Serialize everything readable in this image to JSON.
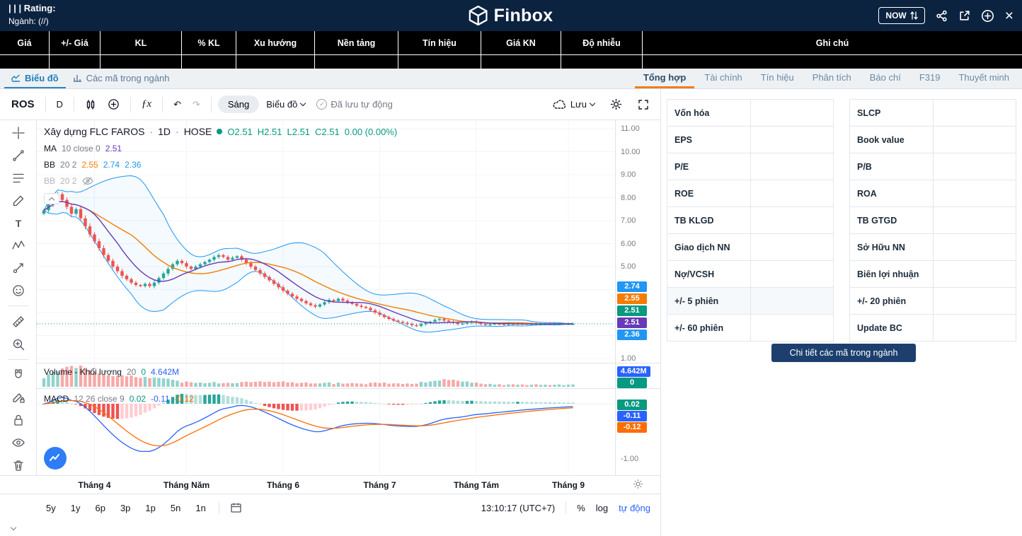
{
  "header": {
    "rating": "| | | Rating:",
    "industry_label": "Ngành:",
    "industry_value": "(//)",
    "brand": "Finbox",
    "now": "NOW"
  },
  "summary": {
    "columns": [
      "Giá",
      "+/- Giá",
      "KL",
      "% KL",
      "Xu hướng",
      "Nền tảng",
      "Tín hiệu",
      "Giá KN",
      "Độ nhiễu",
      "Ghi chú"
    ]
  },
  "tabs": {
    "chart": "Biểu đồ",
    "industry": "Các mã trong ngành",
    "right": [
      {
        "label": "Tổng hợp",
        "active": true
      },
      {
        "label": "Tài chính"
      },
      {
        "label": "Tín hiệu"
      },
      {
        "label": "Phân tích"
      },
      {
        "label": "Báo chí"
      },
      {
        "label": "F319"
      },
      {
        "label": "Thuyết minh"
      }
    ]
  },
  "toolbar": {
    "symbol": "ROS",
    "interval": "D",
    "fx": "ƒx",
    "undo": "↶",
    "redo": "↷",
    "theme": "Sáng",
    "layout": "Biểu đồ",
    "autosave": "Đã lưu tự động",
    "save": "Lưu"
  },
  "legend": {
    "title": "Xây dựng FLC FAROS",
    "sep": "·",
    "res": "1D",
    "exch": "HOSE",
    "o": "O2.51",
    "h": "H2.51",
    "l": "L2.51",
    "c": "C2.51",
    "chg": "0.00 (0.00%)",
    "ma": {
      "name": "MA",
      "params": "10 close 0",
      "value": "2.51"
    },
    "bb": {
      "name": "BB",
      "params": "20 2",
      "v1": "2.55",
      "v2": "2.74",
      "v3": "2.36"
    },
    "bb2": {
      "name": "BB",
      "params": "20 2"
    },
    "vol": {
      "name": "Volume - Khối lượng",
      "params": "20",
      "v1": "0",
      "v2": "4.642M"
    },
    "macd": {
      "name": "MACD",
      "params": "12 26 close 9",
      "v1": "0.02",
      "v2": "-0.11",
      "v3": "-0.12"
    }
  },
  "axis": {
    "prices": [
      "11.00",
      "10.00",
      "9.00",
      "8.00",
      "7.00",
      "6.00",
      "5.00"
    ],
    "price_low": "1.00",
    "macd_low": "-1.00",
    "chips": {
      "bb_upper": "2.74",
      "bb_basis": "2.55",
      "close": "2.51",
      "ma": "2.51",
      "bb_lower": "2.36",
      "volume": "4.642M",
      "vol_zero": "0",
      "macd_hist": "0.02",
      "macd_line": "-0.11",
      "macd_signal": "-0.12"
    }
  },
  "footer": {
    "ranges": [
      "5y",
      "1y",
      "6p",
      "3p",
      "1p",
      "5n",
      "1n"
    ],
    "clock": "13:10:17 (UTC+7)",
    "percent": "%",
    "log": "log",
    "auto": "tự động"
  },
  "info": {
    "left": [
      {
        "label": "Vốn hóa",
        "value": ""
      },
      {
        "label": "EPS",
        "value": ""
      },
      {
        "label": "P/E",
        "value": ""
      },
      {
        "label": "ROE",
        "value": ""
      },
      {
        "label": "TB KLGD",
        "value": ""
      },
      {
        "label": "Giao dịch NN",
        "value": ""
      },
      {
        "label": "Nợ/VCSH",
        "value": ""
      },
      {
        "label": "+/- 5 phiên",
        "value": ""
      },
      {
        "label": "+/- 60 phiên",
        "value": ""
      }
    ],
    "right": [
      {
        "label": "SLCP",
        "value": ""
      },
      {
        "label": "Book value",
        "value": ""
      },
      {
        "label": "P/B",
        "value": ""
      },
      {
        "label": "ROA",
        "value": ""
      },
      {
        "label": "TB GTGD",
        "value": ""
      },
      {
        "label": "Sở Hữu NN",
        "value": ""
      },
      {
        "label": "Biên lợi nhuận",
        "value": ""
      },
      {
        "label": "+/- 20 phiên",
        "value": ""
      },
      {
        "label": "Update BC",
        "value": ""
      }
    ],
    "detail_button": "Chi tiết các mã trong ngành"
  },
  "colors": {
    "navy": "#0c2340",
    "blue": "#2962ff",
    "lightblue": "#2196f3",
    "orange": "#f57c00",
    "deep_orange": "#ff6d00",
    "green": "#089981",
    "teal": "#26a69a",
    "red": "#ef5350",
    "purple": "#673ab7",
    "accent": "#ef7d22",
    "button": "#1c3f6e"
  },
  "chart_data": {
    "type": "candlestick",
    "symbol": "ROS",
    "exchange": "HOSE",
    "timeframe": "1D",
    "title": "Xây dựng FLC FAROS · 1D · HOSE",
    "price_axis": {
      "min": 1,
      "max": 11,
      "step": 1
    },
    "months": [
      "Tháng 4",
      "Tháng Năm",
      "Tháng 6",
      "Tháng 7",
      "Tháng Tám",
      "Tháng 9"
    ],
    "month_indices": [
      11,
      31,
      52,
      73,
      94,
      114
    ],
    "closes": [
      7.45,
      7.7,
      7.95,
      8.15,
      7.9,
      7.6,
      7.3,
      7.5,
      7.1,
      6.75,
      6.4,
      6.1,
      5.8,
      5.5,
      5.25,
      5.0,
      4.8,
      4.6,
      4.45,
      4.3,
      4.2,
      4.15,
      4.25,
      4.15,
      4.3,
      4.5,
      4.7,
      4.9,
      5.1,
      5.25,
      5.15,
      5.0,
      4.9,
      5.0,
      5.1,
      5.2,
      5.3,
      5.42,
      5.5,
      5.42,
      5.3,
      5.38,
      5.45,
      5.3,
      5.15,
      5.0,
      4.85,
      4.7,
      4.55,
      4.4,
      4.25,
      4.1,
      3.95,
      3.82,
      3.7,
      3.6,
      3.5,
      3.4,
      3.32,
      3.26,
      3.35,
      3.45,
      3.55,
      3.5,
      3.6,
      3.52,
      3.45,
      3.38,
      3.3,
      3.25,
      3.2,
      3.1,
      3.0,
      2.9,
      2.8,
      2.72,
      2.65,
      2.6,
      2.55,
      2.5,
      2.45,
      2.42,
      2.5,
      2.55,
      2.6,
      2.68,
      2.72,
      2.65,
      2.6,
      2.55,
      2.5,
      2.52,
      2.56,
      2.6,
      2.55,
      2.5,
      2.48,
      2.5,
      2.52,
      2.5,
      2.49,
      2.51,
      2.5,
      2.52,
      2.51,
      2.5,
      2.51,
      2.5,
      2.51,
      2.51,
      2.5,
      2.51,
      2.51,
      2.51,
      2.51,
      2.51
    ],
    "last": {
      "open": 2.51,
      "high": 2.51,
      "low": 2.51,
      "close": 2.51,
      "change": 0.0,
      "change_pct": "0.00%",
      "ma10": 2.51,
      "bb_basis": 2.55,
      "bb_upper": 2.74,
      "bb_lower": 2.36,
      "volume": "4.642M",
      "macd_hist": 0.02,
      "macd": -0.11,
      "macd_signal": -0.12
    },
    "indicators": [
      "MA 10 close",
      "BB 20 2",
      "Volume MA 20",
      "MACD 12 26 close 9"
    ]
  }
}
